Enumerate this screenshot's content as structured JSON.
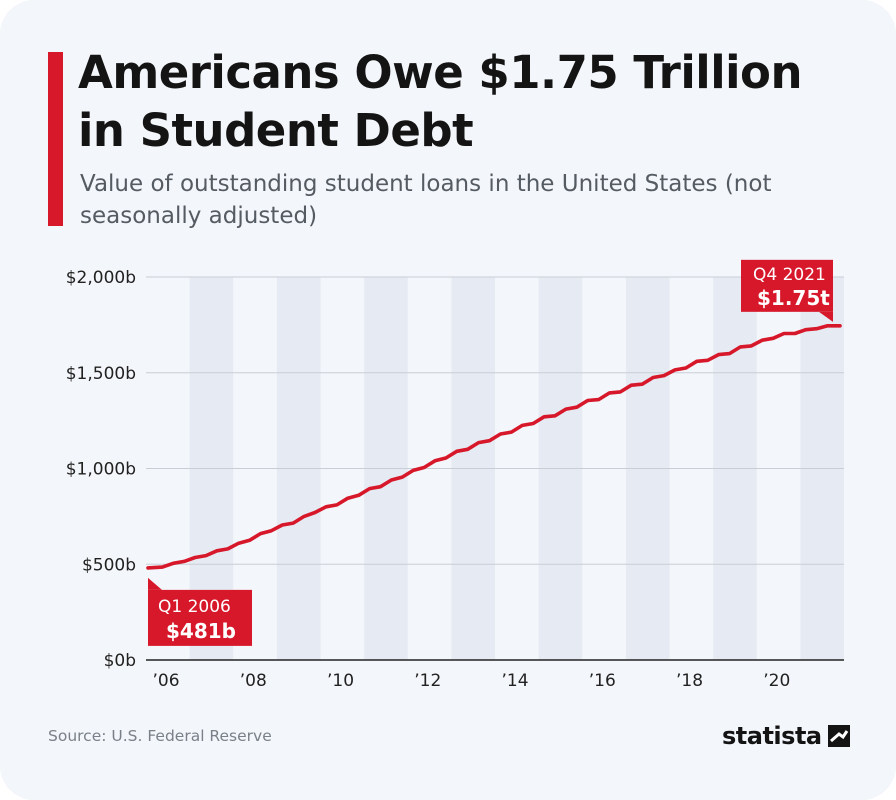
{
  "title": "Americans Owe $1.75 Trillion in Student Debt",
  "subtitle": "Value of outstanding student loans in the United States (not seasonally adjusted)",
  "source": "Source: U.S. Federal Reserve",
  "brand": {
    "name": "statista",
    "icon": "statista-logo-icon"
  },
  "colors": {
    "line": "#d7182a",
    "accent": "#d7182a",
    "band": "#e6ebf3",
    "background": "#f3f6fa"
  },
  "chart_data": {
    "type": "line",
    "title": "Americans Owe $1.75 Trillion in Student Debt",
    "subtitle": "Value of outstanding student loans in the United States (not seasonally adjusted)",
    "xlabel": "",
    "ylabel": "",
    "x_range": [
      2006.0,
      2022.0
    ],
    "ylim": [
      0,
      2000
    ],
    "y_ticks": [
      0,
      500,
      1000,
      1500,
      2000
    ],
    "y_tick_labels": [
      "$0b",
      "$500b",
      "$1,000b",
      "$1,500b",
      "$2,000b"
    ],
    "x_tick_labels": [
      "'06",
      "'08",
      "'10",
      "'12",
      "'14",
      "'16",
      "'18",
      "'20"
    ],
    "shaded_bands": [
      "2007",
      "2009",
      "2011",
      "2013",
      "2015",
      "2017",
      "2019",
      "2021"
    ],
    "grid": true,
    "series": [
      {
        "values": [
          {
            "x": "Q1 2006",
            "y": 481
          },
          {
            "x": "Q2 2006",
            "y": 485
          },
          {
            "x": "Q3 2006",
            "y": 505
          },
          {
            "x": "Q4 2006",
            "y": 515
          },
          {
            "x": "Q1 2007",
            "y": 535
          },
          {
            "x": "Q2 2007",
            "y": 545
          },
          {
            "x": "Q3 2007",
            "y": 570
          },
          {
            "x": "Q4 2007",
            "y": 580
          },
          {
            "x": "Q1 2008",
            "y": 610
          },
          {
            "x": "Q2 2008",
            "y": 625
          },
          {
            "x": "Q3 2008",
            "y": 660
          },
          {
            "x": "Q4 2008",
            "y": 675
          },
          {
            "x": "Q1 2009",
            "y": 705
          },
          {
            "x": "Q2 2009",
            "y": 715
          },
          {
            "x": "Q3 2009",
            "y": 750
          },
          {
            "x": "Q4 2009",
            "y": 770
          },
          {
            "x": "Q1 2010",
            "y": 800
          },
          {
            "x": "Q2 2010",
            "y": 810
          },
          {
            "x": "Q3 2010",
            "y": 845
          },
          {
            "x": "Q4 2010",
            "y": 860
          },
          {
            "x": "Q1 2011",
            "y": 895
          },
          {
            "x": "Q2 2011",
            "y": 905
          },
          {
            "x": "Q3 2011",
            "y": 940
          },
          {
            "x": "Q4 2011",
            "y": 955
          },
          {
            "x": "Q1 2012",
            "y": 990
          },
          {
            "x": "Q2 2012",
            "y": 1005
          },
          {
            "x": "Q3 2012",
            "y": 1040
          },
          {
            "x": "Q4 2012",
            "y": 1055
          },
          {
            "x": "Q1 2013",
            "y": 1090
          },
          {
            "x": "Q2 2013",
            "y": 1100
          },
          {
            "x": "Q3 2013",
            "y": 1135
          },
          {
            "x": "Q4 2013",
            "y": 1145
          },
          {
            "x": "Q1 2014",
            "y": 1180
          },
          {
            "x": "Q2 2014",
            "y": 1190
          },
          {
            "x": "Q3 2014",
            "y": 1225
          },
          {
            "x": "Q4 2014",
            "y": 1235
          },
          {
            "x": "Q1 2015",
            "y": 1270
          },
          {
            "x": "Q2 2015",
            "y": 1275
          },
          {
            "x": "Q3 2015",
            "y": 1310
          },
          {
            "x": "Q4 2015",
            "y": 1320
          },
          {
            "x": "Q1 2016",
            "y": 1355
          },
          {
            "x": "Q2 2016",
            "y": 1360
          },
          {
            "x": "Q3 2016",
            "y": 1395
          },
          {
            "x": "Q4 2016",
            "y": 1400
          },
          {
            "x": "Q1 2017",
            "y": 1435
          },
          {
            "x": "Q2 2017",
            "y": 1440
          },
          {
            "x": "Q3 2017",
            "y": 1475
          },
          {
            "x": "Q4 2017",
            "y": 1485
          },
          {
            "x": "Q1 2018",
            "y": 1515
          },
          {
            "x": "Q2 2018",
            "y": 1525
          },
          {
            "x": "Q3 2018",
            "y": 1560
          },
          {
            "x": "Q4 2018",
            "y": 1565
          },
          {
            "x": "Q1 2019",
            "y": 1595
          },
          {
            "x": "Q2 2019",
            "y": 1600
          },
          {
            "x": "Q3 2019",
            "y": 1635
          },
          {
            "x": "Q4 2019",
            "y": 1640
          },
          {
            "x": "Q1 2020",
            "y": 1670
          },
          {
            "x": "Q2 2020",
            "y": 1680
          },
          {
            "x": "Q3 2020",
            "y": 1705
          },
          {
            "x": "Q4 2020",
            "y": 1705
          },
          {
            "x": "Q1 2021",
            "y": 1725
          },
          {
            "x": "Q2 2021",
            "y": 1730
          },
          {
            "x": "Q3 2021",
            "y": 1745
          },
          {
            "x": "Q4 2021",
            "y": 1745
          }
        ]
      }
    ],
    "annotations": [
      {
        "period": "Q1 2006",
        "label": "$481b",
        "value": 481
      },
      {
        "period": "Q4 2021",
        "label": "$1.75t",
        "value": 1750
      }
    ]
  }
}
